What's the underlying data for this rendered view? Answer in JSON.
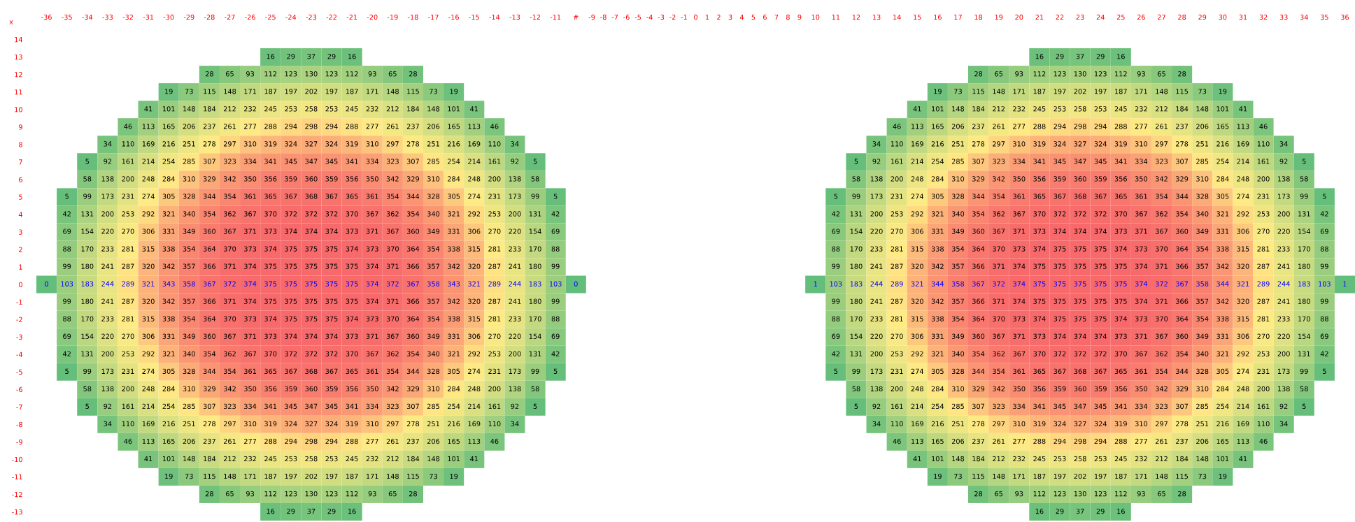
{
  "chart_data": {
    "type": "heatmap",
    "annotations": [
      "x"
    ],
    "data_labels": true,
    "categories": [
      "-36",
      "-35",
      "-34",
      "-33",
      "-32",
      "-31",
      "-30",
      "-29",
      "-28",
      "-27",
      "-26",
      "-25",
      "-24",
      "-23",
      "-22",
      "-21",
      "-20",
      "-19",
      "-18",
      "-17",
      "-16",
      "-15",
      "-14",
      "-13",
      "-12",
      "-11",
      "#",
      "-9",
      "-8",
      "-7",
      "-6",
      "-5",
      "-4",
      "-3",
      "-2",
      "-1",
      "0",
      "1",
      "2",
      "3",
      "4",
      "5",
      "6",
      "7",
      "8",
      "9",
      "10",
      "11",
      "12",
      "13",
      "14",
      "15",
      "16",
      "17",
      "18",
      "19",
      "20",
      "21",
      "22",
      "23",
      "24",
      "25",
      "26",
      "27",
      "28",
      "29",
      "30",
      "31",
      "32",
      "33",
      "34",
      "35",
      "36"
    ],
    "y_categories": [
      "14",
      "13",
      "12",
      "11",
      "10",
      "9",
      "8",
      "7",
      "6",
      "5",
      "4",
      "3",
      "2",
      "1",
      "0",
      "-1",
      "-2",
      "-3",
      "-4",
      "-5",
      "-6",
      "-7",
      "-8",
      "-9",
      "-10",
      "-11",
      "-12",
      "-13"
    ],
    "cells": [
      [
        null,
        null,
        null,
        null,
        null,
        null,
        null,
        null,
        null,
        null,
        null,
        null,
        null,
        null,
        null,
        null,
        null,
        null,
        null,
        null,
        null,
        null,
        null,
        null,
        null,
        null,
        null,
        null,
        null,
        null,
        null,
        null,
        null,
        null,
        null,
        null,
        null,
        null,
        null,
        null,
        null,
        null,
        null,
        null,
        null,
        null,
        null,
        null,
        null,
        null,
        null,
        null,
        null,
        null,
        null,
        null,
        null,
        null,
        null,
        null,
        null,
        null,
        null,
        null,
        null,
        null,
        null,
        null,
        null,
        null,
        null,
        null,
        null
      ],
      [
        null,
        null,
        null,
        null,
        null,
        null,
        null,
        null,
        null,
        null,
        null,
        16,
        29,
        37,
        29,
        16,
        null,
        null,
        null,
        null,
        null,
        null,
        null,
        null,
        null,
        null,
        null,
        null,
        null,
        null,
        null,
        null,
        null,
        null,
        null,
        null,
        null,
        null,
        null,
        null,
        null,
        null,
        null,
        null,
        null,
        null,
        null,
        null,
        null,
        null,
        null,
        null,
        null,
        null,
        null,
        null,
        null,
        16,
        29,
        37,
        29,
        16,
        null,
        null,
        null,
        null,
        null,
        null,
        null,
        null,
        null,
        null,
        null
      ],
      [
        null,
        null,
        null,
        null,
        null,
        null,
        null,
        null,
        28,
        65,
        93,
        112,
        123,
        130,
        123,
        112,
        93,
        65,
        28,
        null,
        null,
        null,
        null,
        null,
        null,
        null,
        null,
        null,
        null,
        null,
        null,
        null,
        null,
        null,
        null,
        null,
        null,
        null,
        null,
        null,
        null,
        null,
        null,
        null,
        null,
        null,
        null,
        null,
        null,
        null,
        null,
        null,
        null,
        null,
        28,
        65,
        93,
        112,
        123,
        130,
        123,
        112,
        93,
        65,
        28,
        null,
        null,
        null,
        null,
        null,
        null,
        null,
        null
      ],
      [
        null,
        null,
        null,
        null,
        null,
        null,
        19,
        73,
        115,
        148,
        171,
        187,
        197,
        202,
        197,
        187,
        171,
        148,
        115,
        73,
        19,
        null,
        null,
        null,
        null,
        null,
        null,
        null,
        null,
        null,
        null,
        null,
        null,
        null,
        null,
        null,
        null,
        null,
        null,
        null,
        null,
        null,
        null,
        null,
        null,
        null,
        null,
        null,
        null,
        null,
        null,
        null,
        19,
        73,
        115,
        148,
        171,
        187,
        197,
        202,
        197,
        187,
        171,
        148,
        115,
        73,
        19,
        null,
        null,
        null,
        null,
        null,
        null
      ],
      [
        null,
        null,
        null,
        null,
        null,
        41,
        101,
        148,
        184,
        212,
        232,
        245,
        253,
        258,
        253,
        245,
        232,
        212,
        184,
        148,
        101,
        41,
        null,
        null,
        null,
        null,
        null,
        null,
        null,
        null,
        null,
        null,
        null,
        null,
        null,
        null,
        null,
        null,
        null,
        null,
        null,
        null,
        null,
        null,
        null,
        null,
        null,
        null,
        null,
        null,
        null,
        41,
        101,
        148,
        184,
        212,
        232,
        245,
        253,
        258,
        253,
        245,
        232,
        212,
        184,
        148,
        101,
        41,
        null,
        null,
        null,
        null,
        null
      ],
      [
        null,
        null,
        null,
        null,
        46,
        113,
        165,
        206,
        237,
        261,
        277,
        288,
        294,
        298,
        294,
        288,
        277,
        261,
        237,
        206,
        165,
        113,
        46,
        null,
        null,
        null,
        null,
        null,
        null,
        null,
        null,
        null,
        null,
        null,
        null,
        null,
        null,
        null,
        null,
        null,
        null,
        null,
        null,
        null,
        null,
        null,
        null,
        null,
        null,
        null,
        46,
        113,
        165,
        206,
        237,
        261,
        277,
        288,
        294,
        298,
        294,
        288,
        277,
        261,
        237,
        206,
        165,
        113,
        46,
        null,
        null,
        null,
        null
      ],
      [
        null,
        null,
        null,
        34,
        110,
        169,
        216,
        251,
        278,
        297,
        310,
        319,
        324,
        327,
        324,
        319,
        310,
        297,
        278,
        251,
        216,
        169,
        110,
        34,
        null,
        null,
        null,
        null,
        null,
        null,
        null,
        null,
        null,
        null,
        null,
        null,
        null,
        null,
        null,
        null,
        null,
        null,
        null,
        null,
        null,
        null,
        null,
        null,
        null,
        34,
        110,
        169,
        216,
        251,
        278,
        297,
        310,
        319,
        324,
        327,
        324,
        319,
        310,
        297,
        278,
        251,
        216,
        169,
        110,
        34,
        null,
        null,
        null
      ],
      [
        null,
        null,
        5,
        92,
        161,
        214,
        254,
        285,
        307,
        323,
        334,
        341,
        345,
        347,
        345,
        341,
        334,
        323,
        307,
        285,
        254,
        214,
        161,
        92,
        5,
        null,
        null,
        null,
        null,
        null,
        null,
        null,
        null,
        null,
        null,
        null,
        null,
        null,
        null,
        null,
        null,
        null,
        null,
        null,
        null,
        null,
        null,
        null,
        5,
        92,
        161,
        214,
        254,
        285,
        307,
        323,
        334,
        341,
        345,
        347,
        345,
        341,
        334,
        323,
        307,
        285,
        254,
        214,
        161,
        92,
        5,
        null,
        null
      ],
      [
        null,
        null,
        58,
        138,
        200,
        248,
        284,
        310,
        329,
        342,
        350,
        356,
        359,
        360,
        359,
        356,
        350,
        342,
        329,
        310,
        284,
        248,
        200,
        138,
        58,
        null,
        null,
        null,
        null,
        null,
        null,
        null,
        null,
        null,
        null,
        null,
        null,
        null,
        null,
        null,
        null,
        null,
        null,
        null,
        null,
        null,
        null,
        null,
        58,
        138,
        200,
        248,
        284,
        310,
        329,
        342,
        350,
        356,
        359,
        360,
        359,
        356,
        350,
        342,
        329,
        310,
        284,
        248,
        200,
        138,
        58,
        null,
        null
      ],
      [
        null,
        5,
        99,
        173,
        231,
        274,
        305,
        328,
        344,
        354,
        361,
        365,
        367,
        368,
        367,
        365,
        361,
        354,
        344,
        328,
        305,
        274,
        231,
        173,
        99,
        5,
        null,
        null,
        null,
        null,
        null,
        null,
        null,
        null,
        null,
        null,
        null,
        null,
        null,
        null,
        null,
        null,
        null,
        null,
        null,
        null,
        null,
        5,
        99,
        173,
        231,
        274,
        305,
        328,
        344,
        354,
        361,
        365,
        367,
        368,
        367,
        365,
        361,
        354,
        344,
        328,
        305,
        274,
        231,
        173,
        99,
        5,
        null
      ],
      [
        null,
        42,
        131,
        200,
        253,
        292,
        321,
        340,
        354,
        362,
        367,
        370,
        372,
        372,
        372,
        370,
        367,
        362,
        354,
        340,
        321,
        292,
        253,
        200,
        131,
        42,
        null,
        null,
        null,
        null,
        null,
        null,
        null,
        null,
        null,
        null,
        null,
        null,
        null,
        null,
        null,
        null,
        null,
        null,
        null,
        null,
        null,
        42,
        131,
        200,
        253,
        292,
        321,
        340,
        354,
        362,
        367,
        370,
        372,
        372,
        372,
        370,
        367,
        362,
        354,
        340,
        321,
        292,
        253,
        200,
        131,
        42,
        null
      ],
      [
        null,
        69,
        154,
        220,
        270,
        306,
        331,
        349,
        360,
        367,
        371,
        373,
        374,
        374,
        374,
        373,
        371,
        367,
        360,
        349,
        331,
        306,
        270,
        220,
        154,
        69,
        null,
        null,
        null,
        null,
        null,
        null,
        null,
        null,
        null,
        null,
        null,
        null,
        null,
        null,
        null,
        null,
        null,
        null,
        null,
        null,
        null,
        69,
        154,
        220,
        270,
        306,
        331,
        349,
        360,
        367,
        371,
        373,
        374,
        374,
        374,
        373,
        371,
        367,
        360,
        349,
        331,
        306,
        270,
        220,
        154,
        69,
        null
      ],
      [
        null,
        88,
        170,
        233,
        281,
        315,
        338,
        354,
        364,
        370,
        373,
        374,
        375,
        375,
        375,
        374,
        373,
        370,
        364,
        354,
        338,
        315,
        281,
        233,
        170,
        88,
        null,
        null,
        null,
        null,
        null,
        null,
        null,
        null,
        null,
        null,
        null,
        null,
        null,
        null,
        null,
        null,
        null,
        null,
        null,
        null,
        null,
        88,
        170,
        233,
        281,
        315,
        338,
        354,
        364,
        370,
        373,
        374,
        375,
        375,
        375,
        374,
        373,
        370,
        364,
        354,
        338,
        315,
        281,
        233,
        170,
        88,
        null
      ],
      [
        null,
        99,
        180,
        241,
        287,
        320,
        342,
        357,
        366,
        371,
        374,
        375,
        375,
        375,
        375,
        375,
        374,
        371,
        366,
        357,
        342,
        320,
        287,
        241,
        180,
        99,
        null,
        null,
        null,
        null,
        null,
        null,
        null,
        null,
        null,
        null,
        null,
        null,
        null,
        null,
        null,
        null,
        null,
        null,
        null,
        null,
        null,
        99,
        180,
        241,
        287,
        320,
        342,
        357,
        366,
        371,
        374,
        375,
        375,
        375,
        375,
        375,
        374,
        371,
        366,
        357,
        342,
        320,
        287,
        241,
        180,
        99,
        null
      ],
      [
        0,
        103,
        183,
        244,
        289,
        321,
        343,
        358,
        367,
        372,
        374,
        375,
        375,
        375,
        375,
        375,
        374,
        372,
        367,
        358,
        343,
        321,
        289,
        244,
        183,
        103,
        0,
        null,
        null,
        null,
        null,
        null,
        null,
        null,
        null,
        null,
        null,
        null,
        null,
        null,
        null,
        null,
        null,
        null,
        null,
        null,
        1,
        103,
        183,
        244,
        289,
        321,
        344,
        358,
        367,
        372,
        374,
        375,
        375,
        375,
        375,
        375,
        374,
        372,
        367,
        358,
        344,
        321,
        289,
        244,
        183,
        103,
        1
      ],
      [
        null,
        99,
        180,
        241,
        287,
        320,
        342,
        357,
        366,
        371,
        374,
        375,
        375,
        375,
        375,
        375,
        374,
        371,
        366,
        357,
        342,
        320,
        287,
        241,
        180,
        99,
        null,
        null,
        null,
        null,
        null,
        null,
        null,
        null,
        null,
        null,
        null,
        null,
        null,
        null,
        null,
        null,
        null,
        null,
        null,
        null,
        null,
        99,
        180,
        241,
        287,
        320,
        342,
        357,
        366,
        371,
        374,
        375,
        375,
        375,
        375,
        375,
        374,
        371,
        366,
        357,
        342,
        320,
        287,
        241,
        180,
        99,
        null
      ],
      [
        null,
        88,
        170,
        233,
        281,
        315,
        338,
        354,
        364,
        370,
        373,
        374,
        375,
        375,
        375,
        374,
        373,
        370,
        364,
        354,
        338,
        315,
        281,
        233,
        170,
        88,
        null,
        null,
        null,
        null,
        null,
        null,
        null,
        null,
        null,
        null,
        null,
        null,
        null,
        null,
        null,
        null,
        null,
        null,
        null,
        null,
        null,
        88,
        170,
        233,
        281,
        315,
        338,
        354,
        364,
        370,
        373,
        374,
        375,
        375,
        375,
        374,
        373,
        370,
        364,
        354,
        338,
        315,
        281,
        233,
        170,
        88,
        null
      ],
      [
        null,
        69,
        154,
        220,
        270,
        306,
        331,
        349,
        360,
        367,
        371,
        373,
        374,
        374,
        374,
        373,
        371,
        367,
        360,
        349,
        331,
        306,
        270,
        220,
        154,
        69,
        null,
        null,
        null,
        null,
        null,
        null,
        null,
        null,
        null,
        null,
        null,
        null,
        null,
        null,
        null,
        null,
        null,
        null,
        null,
        null,
        null,
        69,
        154,
        220,
        270,
        306,
        331,
        349,
        360,
        367,
        371,
        373,
        374,
        374,
        374,
        373,
        371,
        367,
        360,
        349,
        331,
        306,
        270,
        220,
        154,
        69,
        null
      ],
      [
        null,
        42,
        131,
        200,
        253,
        292,
        321,
        340,
        354,
        362,
        367,
        370,
        372,
        372,
        372,
        370,
        367,
        362,
        354,
        340,
        321,
        292,
        253,
        200,
        131,
        42,
        null,
        null,
        null,
        null,
        null,
        null,
        null,
        null,
        null,
        null,
        null,
        null,
        null,
        null,
        null,
        null,
        null,
        null,
        null,
        null,
        null,
        42,
        131,
        200,
        253,
        292,
        321,
        340,
        354,
        362,
        367,
        370,
        372,
        372,
        372,
        370,
        367,
        362,
        354,
        340,
        321,
        292,
        253,
        200,
        131,
        42,
        null
      ],
      [
        null,
        5,
        99,
        173,
        231,
        274,
        305,
        328,
        344,
        354,
        361,
        365,
        367,
        368,
        367,
        365,
        361,
        354,
        344,
        328,
        305,
        274,
        231,
        173,
        99,
        5,
        null,
        null,
        null,
        null,
        null,
        null,
        null,
        null,
        null,
        null,
        null,
        null,
        null,
        null,
        null,
        null,
        null,
        null,
        null,
        null,
        null,
        5,
        99,
        173,
        231,
        274,
        305,
        328,
        344,
        354,
        361,
        365,
        367,
        368,
        367,
        365,
        361,
        354,
        344,
        328,
        305,
        274,
        231,
        173,
        99,
        5,
        null
      ],
      [
        null,
        null,
        58,
        138,
        200,
        248,
        284,
        310,
        329,
        342,
        350,
        356,
        359,
        360,
        359,
        356,
        350,
        342,
        329,
        310,
        284,
        248,
        200,
        138,
        58,
        null,
        null,
        null,
        null,
        null,
        null,
        null,
        null,
        null,
        null,
        null,
        null,
        null,
        null,
        null,
        null,
        null,
        null,
        null,
        null,
        null,
        null,
        null,
        58,
        138,
        200,
        248,
        284,
        310,
        329,
        342,
        350,
        356,
        359,
        360,
        359,
        356,
        350,
        342,
        329,
        310,
        284,
        248,
        200,
        138,
        58,
        null,
        null
      ],
      [
        null,
        null,
        5,
        92,
        161,
        214,
        254,
        285,
        307,
        323,
        334,
        341,
        345,
        347,
        345,
        341,
        334,
        323,
        307,
        285,
        254,
        214,
        161,
        92,
        5,
        null,
        null,
        null,
        null,
        null,
        null,
        null,
        null,
        null,
        null,
        null,
        null,
        null,
        null,
        null,
        null,
        null,
        null,
        null,
        null,
        null,
        null,
        null,
        5,
        92,
        161,
        214,
        254,
        285,
        307,
        323,
        334,
        341,
        345,
        347,
        345,
        341,
        334,
        323,
        307,
        285,
        254,
        214,
        161,
        92,
        5,
        null,
        null
      ],
      [
        null,
        null,
        null,
        34,
        110,
        169,
        216,
        251,
        278,
        297,
        310,
        319,
        324,
        327,
        324,
        319,
        310,
        297,
        278,
        251,
        216,
        169,
        110,
        34,
        null,
        null,
        null,
        null,
        null,
        null,
        null,
        null,
        null,
        null,
        null,
        null,
        null,
        null,
        null,
        null,
        null,
        null,
        null,
        null,
        null,
        null,
        null,
        null,
        null,
        34,
        110,
        169,
        216,
        251,
        278,
        297,
        310,
        319,
        324,
        327,
        324,
        319,
        310,
        297,
        278,
        251,
        216,
        169,
        110,
        34,
        null,
        null,
        null
      ],
      [
        null,
        null,
        null,
        null,
        46,
        113,
        165,
        206,
        237,
        261,
        277,
        288,
        294,
        298,
        294,
        288,
        277,
        261,
        237,
        206,
        165,
        113,
        46,
        null,
        null,
        null,
        null,
        null,
        null,
        null,
        null,
        null,
        null,
        null,
        null,
        null,
        null,
        null,
        null,
        null,
        null,
        null,
        null,
        null,
        null,
        null,
        null,
        null,
        null,
        null,
        46,
        113,
        165,
        206,
        237,
        261,
        277,
        288,
        294,
        298,
        294,
        288,
        277,
        261,
        237,
        206,
        165,
        113,
        46,
        null,
        null,
        null,
        null
      ],
      [
        null,
        null,
        null,
        null,
        null,
        41,
        101,
        148,
        184,
        212,
        232,
        245,
        253,
        258,
        253,
        245,
        232,
        212,
        184,
        148,
        101,
        41,
        null,
        null,
        null,
        null,
        null,
        null,
        null,
        null,
        null,
        null,
        null,
        null,
        null,
        null,
        null,
        null,
        null,
        null,
        null,
        null,
        null,
        null,
        null,
        null,
        null,
        null,
        null,
        null,
        null,
        41,
        101,
        148,
        184,
        212,
        232,
        245,
        253,
        258,
        253,
        245,
        232,
        212,
        184,
        148,
        101,
        41,
        null,
        null,
        null,
        null,
        null
      ],
      [
        null,
        null,
        null,
        null,
        null,
        null,
        19,
        73,
        115,
        148,
        171,
        187,
        197,
        202,
        197,
        187,
        171,
        148,
        115,
        73,
        19,
        null,
        null,
        null,
        null,
        null,
        null,
        null,
        null,
        null,
        null,
        null,
        null,
        null,
        null,
        null,
        null,
        null,
        null,
        null,
        null,
        null,
        null,
        null,
        null,
        null,
        null,
        null,
        null,
        null,
        null,
        null,
        19,
        73,
        115,
        148,
        171,
        187,
        197,
        202,
        197,
        187,
        171,
        148,
        115,
        73,
        19,
        null,
        null,
        null,
        null,
        null,
        null
      ],
      [
        null,
        null,
        null,
        null,
        null,
        null,
        null,
        null,
        28,
        65,
        93,
        112,
        123,
        130,
        123,
        112,
        93,
        65,
        28,
        null,
        null,
        null,
        null,
        null,
        null,
        null,
        null,
        null,
        null,
        null,
        null,
        null,
        null,
        null,
        null,
        null,
        null,
        null,
        null,
        null,
        null,
        null,
        null,
        null,
        null,
        null,
        null,
        null,
        null,
        null,
        null,
        null,
        null,
        null,
        28,
        65,
        93,
        112,
        123,
        130,
        123,
        112,
        93,
        65,
        28,
        null,
        null,
        null,
        null,
        null,
        null,
        null,
        null
      ],
      [
        null,
        null,
        null,
        null,
        null,
        null,
        null,
        null,
        null,
        null,
        null,
        16,
        29,
        37,
        29,
        16,
        null,
        null,
        null,
        null,
        null,
        null,
        null,
        null,
        null,
        null,
        null,
        null,
        null,
        null,
        null,
        null,
        null,
        null,
        null,
        null,
        null,
        null,
        null,
        null,
        null,
        null,
        null,
        null,
        null,
        null,
        null,
        null,
        null,
        null,
        null,
        null,
        null,
        null,
        null,
        null,
        null,
        16,
        29,
        37,
        29,
        16,
        null,
        null,
        null,
        null,
        null,
        null,
        null,
        null,
        null,
        null,
        null
      ]
    ]
  }
}
